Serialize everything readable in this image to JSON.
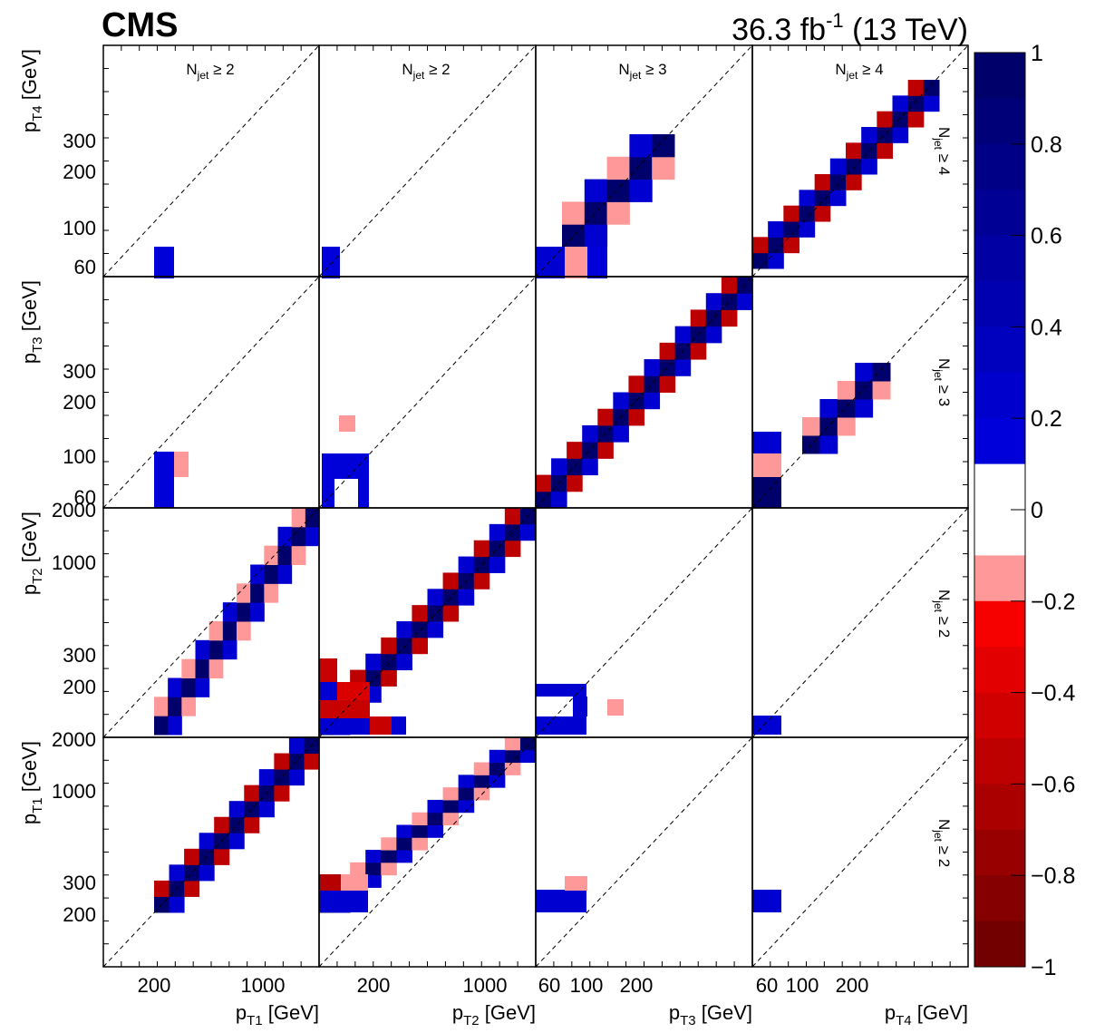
{
  "header": {
    "experiment": "CMS",
    "lumi": "36.3",
    "lumi_unit": "fb",
    "lumi_exp": "-1",
    "energy": "(13 TeV)"
  },
  "chart_data": {
    "type": "heatmap",
    "description_colors": {
      "positive_max": "#000066",
      "positive_min": "#0000ff",
      "negative_min": "#ff9999",
      "negative_max": "#660000",
      "zero": "#ffffff"
    },
    "colorbar": {
      "min": -1,
      "max": 1,
      "ticks": [
        "1",
        "0.8",
        "0.6",
        "0.4",
        "0.2",
        "0",
        "−0.2",
        "−0.4",
        "−0.6",
        "−0.8",
        "−1"
      ]
    },
    "columns": [
      {
        "xlabel_main": "p",
        "xlabel_sub": "T1",
        "xlabel_unit": " [GeV]",
        "range": [
          100,
          2000
        ],
        "ticks": [
          "200",
          "1000"
        ],
        "njet": "N",
        "njet_sub": "jet",
        "njet_cond": " ≥ 2"
      },
      {
        "xlabel_main": "p",
        "xlabel_sub": "T2",
        "xlabel_unit": " [GeV]",
        "range": [
          100,
          2000
        ],
        "ticks": [
          "200",
          "1000"
        ],
        "njet": "N",
        "njet_sub": "jet",
        "njet_cond": " ≥ 2"
      },
      {
        "xlabel_main": "p",
        "xlabel_sub": "T3",
        "xlabel_unit": " [GeV]",
        "range": [
          50,
          1500
        ],
        "ticks": [
          "60",
          "100",
          "200"
        ],
        "njet": "N",
        "njet_sub": "jet",
        "njet_cond": " ≥ 3"
      },
      {
        "xlabel_main": "p",
        "xlabel_sub": "T4",
        "xlabel_unit": " [GeV]",
        "range": [
          50,
          1500
        ],
        "ticks": [
          "60",
          "100",
          "200"
        ],
        "njet": "N",
        "njet_sub": "jet",
        "njet_cond": " ≥ 4"
      }
    ],
    "rows": [
      {
        "ylabel_main": "p",
        "ylabel_sub": "T4",
        "ylabel_unit": " [GeV]",
        "ticks": [
          "60",
          "100",
          "200",
          "300"
        ],
        "njet": "N",
        "njet_sub": "jet",
        "njet_cond": " ≥ 4"
      },
      {
        "ylabel_main": "p",
        "ylabel_sub": "T3",
        "ylabel_unit": " [GeV]",
        "ticks": [
          "60",
          "100",
          "200",
          "300"
        ],
        "njet": "N",
        "njet_sub": "jet",
        "njet_cond": " ≥ 3"
      },
      {
        "ylabel_main": "p",
        "ylabel_sub": "T2",
        "ylabel_unit": " [GeV]",
        "ticks": [
          "200",
          "300",
          "1000",
          "2000"
        ],
        "njet": "N",
        "njet_sub": "jet",
        "njet_cond": " ≥ 2"
      },
      {
        "ylabel_main": "p",
        "ylabel_sub": "T1",
        "ylabel_unit": " [GeV]",
        "ticks": [
          "200",
          "300",
          "1000",
          "2000"
        ],
        "njet": "N",
        "njet_sub": "jet",
        "njet_cond": " ≥ 2"
      }
    ],
    "grid": false,
    "legend": "colorbar-right"
  }
}
